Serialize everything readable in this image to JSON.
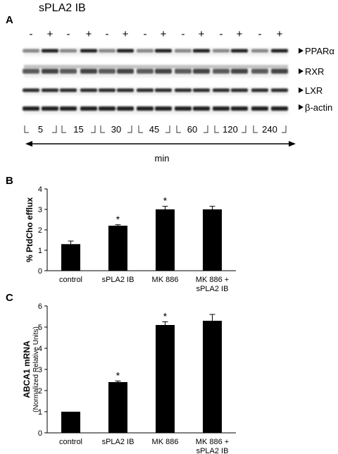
{
  "figure_title": "sPLA2 IB",
  "panel_a": {
    "label": "A",
    "lane_signs": [
      "-",
      "+",
      "-",
      "+",
      "-",
      "+",
      "-",
      "+",
      "-",
      "+",
      "-",
      "+",
      "-",
      "+"
    ],
    "blot_labels": [
      "PPARα",
      "RXR",
      "LXR",
      "β-actin"
    ],
    "time_points": [
      "5",
      "15",
      "30",
      "45",
      "60",
      "120",
      "240"
    ],
    "time_unit": "min"
  },
  "panel_b_label": "B",
  "panel_c_label": "C",
  "chart_data": [
    {
      "type": "bar",
      "categories": [
        "control",
        "sPLA2 IB",
        "MK 886",
        "MK 886 + sPLA2 IB"
      ],
      "values": [
        1.3,
        2.2,
        3.0,
        3.0
      ],
      "errors": [
        0.15,
        0.05,
        0.15,
        0.15
      ],
      "significant": [
        false,
        true,
        true,
        false
      ],
      "ylabel": "% PtdCho efflux",
      "xlabel": "",
      "ylim": [
        0,
        4
      ],
      "yticks": [
        0,
        1,
        2,
        3,
        4
      ],
      "significance_marker": "*"
    },
    {
      "type": "bar",
      "categories": [
        "control",
        "sPLA2 IB",
        "MK 886",
        "MK 886 + sPLA2 IB"
      ],
      "values": [
        1.0,
        2.4,
        5.1,
        5.3
      ],
      "errors": [
        0.0,
        0.05,
        0.15,
        0.3
      ],
      "significant": [
        false,
        true,
        true,
        false
      ],
      "ylabel": "ABCA1 mRNA",
      "ylabel_sub": "(Normalized Relative Units)",
      "xlabel": "",
      "ylim": [
        0,
        6
      ],
      "yticks": [
        0,
        1,
        2,
        3,
        4,
        5,
        6
      ],
      "significance_marker": "*"
    }
  ]
}
